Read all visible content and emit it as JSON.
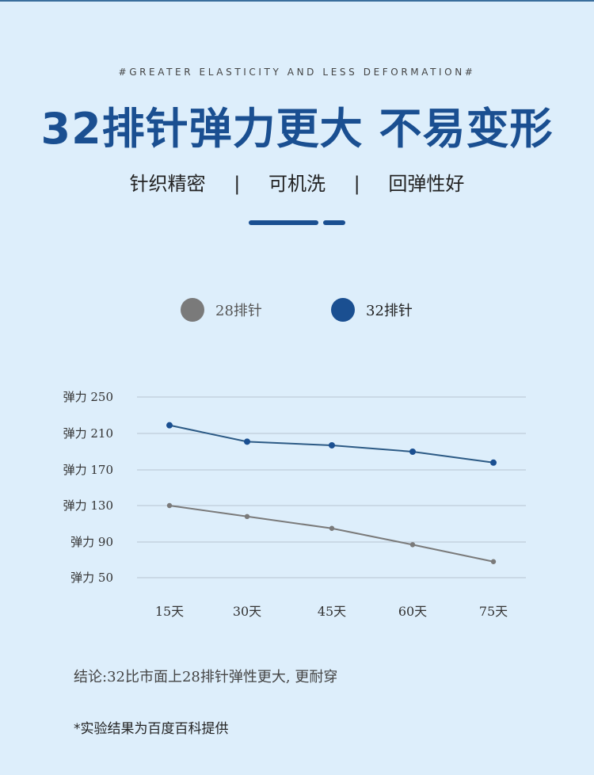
{
  "tagline": "#GREATER ELASTICITY AND LESS DEFORMATION#",
  "headline": "32排针弹力更大 不易变形",
  "features": [
    "针织精密",
    "可机洗",
    "回弹性好"
  ],
  "separator": "|",
  "colors": {
    "primary": "#1a4f91",
    "secondary": "#7a7a7a",
    "line_dark": "#2c5a85",
    "grid": "#b7c4d1",
    "background": "#ddeefb"
  },
  "conclusion": "结论:32比市面上28排针弹性更大, 更耐穿",
  "note": "*实验结果为百度百科提供",
  "chart_data": {
    "type": "line",
    "categories": [
      "15天",
      "30天",
      "45天",
      "60天",
      "75天"
    ],
    "y_tick_values": [
      250,
      210,
      170,
      130,
      90,
      50
    ],
    "y_tick_labels": [
      "弹力 250",
      "弹力 210",
      "弹力 170",
      "弹力 130",
      "弹力 90",
      "弹力 50"
    ],
    "ylim": [
      50,
      250
    ],
    "grid": true,
    "legend_placement": "top-center",
    "series": [
      {
        "name": "28排针",
        "color": "#7a7a7a",
        "values": [
          130,
          118,
          105,
          87,
          68
        ]
      },
      {
        "name": "32排针",
        "color": "#1a4f91",
        "values": [
          219,
          201,
          197,
          190,
          178
        ]
      }
    ]
  }
}
